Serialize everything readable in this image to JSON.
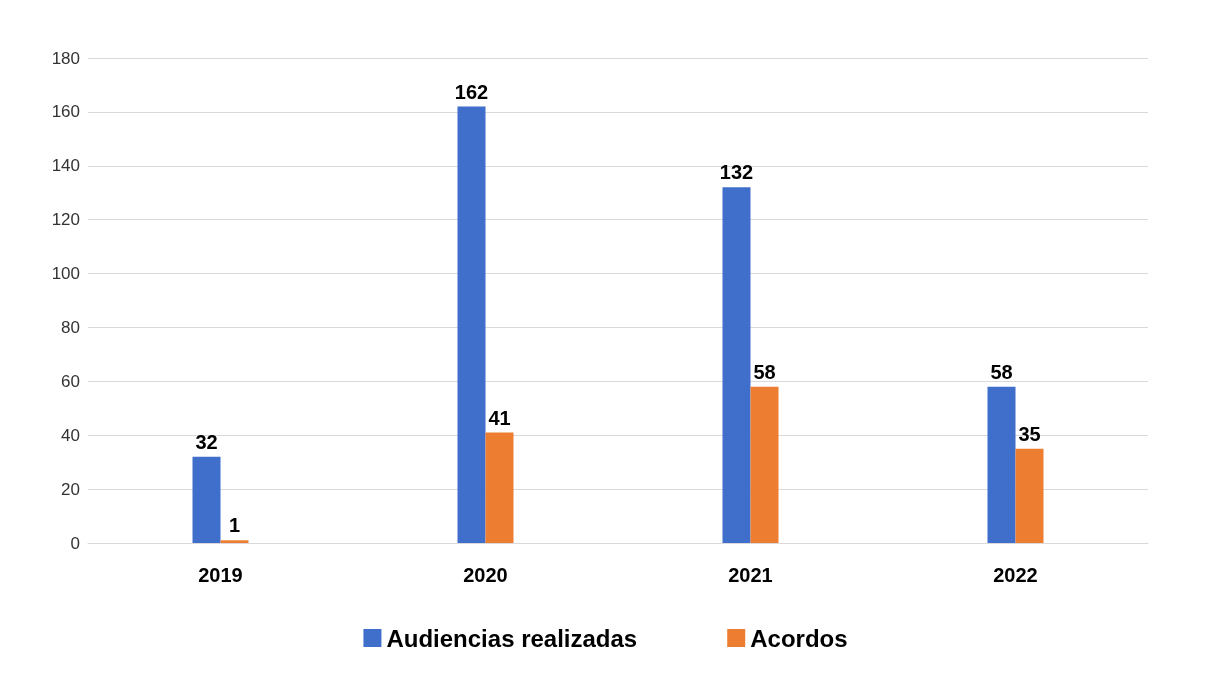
{
  "chart_data": {
    "type": "bar",
    "categories": [
      "2019",
      "2020",
      "2021",
      "2022"
    ],
    "series": [
      {
        "name": "Audiencias realizadas",
        "color": "#3f6fcb",
        "values": [
          32,
          162,
          132,
          58
        ]
      },
      {
        "name": "Acordos",
        "color": "#ed7d31",
        "values": [
          1,
          41,
          58,
          35
        ]
      }
    ],
    "ylim": [
      0,
      180
    ],
    "yticks": [
      0,
      20,
      40,
      60,
      80,
      100,
      120,
      140,
      160,
      180
    ],
    "grid": "y",
    "legend": "bottom",
    "data_labels": true
  }
}
